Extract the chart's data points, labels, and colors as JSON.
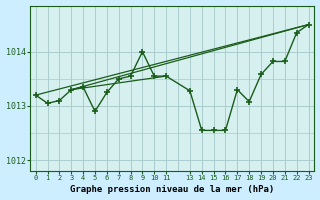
{
  "background_color": "#cceeff",
  "plot_bg_color": "#d6f0f0",
  "grid_color": "#aacccc",
  "line_color": "#1a5c1a",
  "xlabel": "Graphe pression niveau de la mer (hPa)",
  "ylim": [
    1011.8,
    1014.85
  ],
  "xlim": [
    -0.5,
    23.5
  ],
  "yticks": [
    1012,
    1013,
    1014
  ],
  "xtick_positions": [
    0,
    1,
    2,
    3,
    4,
    5,
    6,
    7,
    8,
    9,
    10,
    11,
    13,
    14,
    15,
    16,
    17,
    18,
    19,
    20,
    21,
    22,
    23
  ],
  "xtick_labels": [
    "0",
    "1",
    "2",
    "3",
    "4",
    "5",
    "6",
    "7",
    "8",
    "9",
    "10",
    "11",
    "13",
    "14",
    "15",
    "16",
    "17",
    "18",
    "19",
    "20",
    "21",
    "22",
    "23"
  ],
  "series_x": [
    0,
    1,
    2,
    3,
    4,
    5,
    6,
    7,
    8,
    9,
    10,
    11,
    13,
    14,
    15,
    16,
    17,
    18,
    19,
    20,
    21,
    22,
    23
  ],
  "series_y": [
    1013.2,
    1013.05,
    1013.1,
    1013.3,
    1013.35,
    1012.9,
    1013.25,
    1013.5,
    1013.55,
    1014.0,
    1013.55,
    1013.55,
    1013.28,
    1012.55,
    1012.55,
    1012.55,
    1013.3,
    1013.08,
    1013.58,
    1013.82,
    1013.82,
    1014.35,
    1014.5
  ],
  "trend_lines": [
    {
      "x": [
        0,
        23
      ],
      "y": [
        1013.2,
        1014.5
      ]
    },
    {
      "x": [
        3,
        23
      ],
      "y": [
        1013.3,
        1014.5
      ]
    },
    {
      "x": [
        3,
        11
      ],
      "y": [
        1013.3,
        1013.55
      ]
    }
  ]
}
